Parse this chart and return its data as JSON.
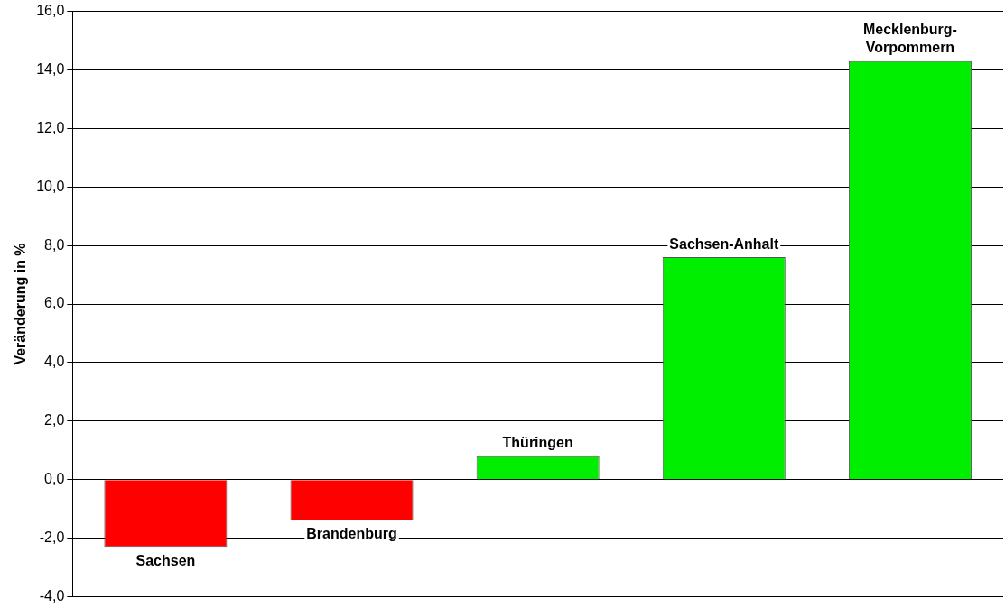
{
  "chart_data": {
    "type": "bar",
    "ylabel": "Veränderung in %",
    "categories": [
      "Sachsen",
      "Brandenburg",
      "Thüringen",
      "Sachsen-Anhalt",
      "Mecklenburg-Vorpommern"
    ],
    "values": [
      -2.3,
      -1.4,
      0.8,
      7.6,
      14.3
    ],
    "colors": [
      "#ff0000",
      "#ff0000",
      "#00ee00",
      "#00ee00",
      "#00ee00"
    ],
    "ylim": [
      -4,
      16
    ],
    "yticks": [
      {
        "value": -4,
        "label": "-4,0"
      },
      {
        "value": -2,
        "label": "-2,0"
      },
      {
        "value": 0,
        "label": "0,0"
      },
      {
        "value": 2,
        "label": "2,0"
      },
      {
        "value": 4,
        "label": "4,0"
      },
      {
        "value": 6,
        "label": "6,0"
      },
      {
        "value": 8,
        "label": "8,0"
      },
      {
        "value": 10,
        "label": "10,0"
      },
      {
        "value": 12,
        "label": "12,0"
      },
      {
        "value": 14,
        "label": "14,0"
      },
      {
        "value": 16,
        "label": "16,0"
      }
    ],
    "grid": "y",
    "legend": false,
    "tick_labels": "y"
  }
}
